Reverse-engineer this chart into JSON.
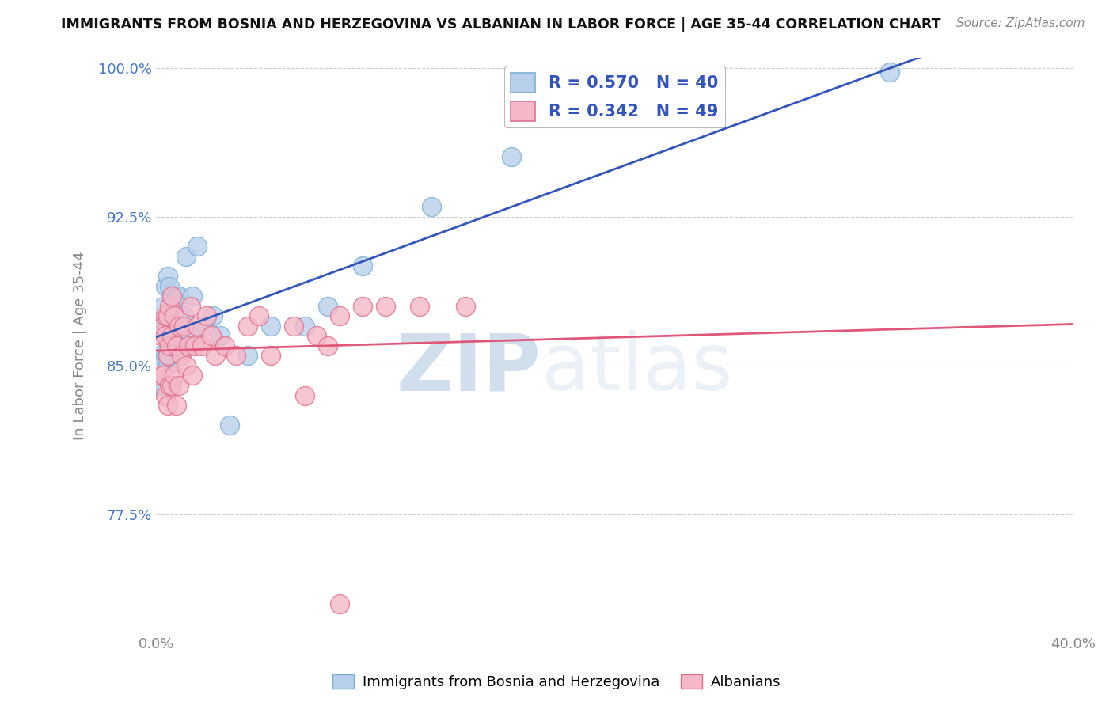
{
  "title": "IMMIGRANTS FROM BOSNIA AND HERZEGOVINA VS ALBANIAN IN LABOR FORCE | AGE 35-44 CORRELATION CHART",
  "source": "Source: ZipAtlas.com",
  "ylabel": "In Labor Force | Age 35-44",
  "xlim": [
    0.0,
    0.4
  ],
  "ylim": [
    0.715,
    1.005
  ],
  "yticks": [
    0.775,
    0.85,
    0.925,
    1.0
  ],
  "ytick_labels": [
    "77.5%",
    "85.0%",
    "92.5%",
    "100.0%"
  ],
  "xticks": [
    0.0,
    0.4
  ],
  "xtick_labels": [
    "0.0%",
    "40.0%"
  ],
  "blue_color": "#b8d0ea",
  "blue_edge_color": "#7bafd4",
  "pink_color": "#f4b8c8",
  "pink_edge_color": "#e07090",
  "blue_line_color": "#3355bb",
  "pink_line_color": "#e05878",
  "legend_r_blue": "R = 0.570",
  "legend_n_blue": "N = 40",
  "legend_r_pink": "R = 0.342",
  "legend_n_pink": "N = 49",
  "watermark_zip": "ZIP",
  "watermark_atlas": "atlas",
  "label_blue": "Immigrants from Bosnia and Herzegovina",
  "label_pink": "Albanians",
  "title_color": "#111111",
  "axis_color": "#888888",
  "tick_color": "#4477cc",
  "grid_color": "#cccccc",
  "blue_scatter_x": [
    0.001,
    0.002,
    0.003,
    0.003,
    0.003,
    0.004,
    0.004,
    0.004,
    0.005,
    0.005,
    0.005,
    0.005,
    0.006,
    0.006,
    0.006,
    0.007,
    0.007,
    0.008,
    0.009,
    0.009,
    0.01,
    0.01,
    0.011,
    0.012,
    0.013,
    0.015,
    0.016,
    0.018,
    0.022,
    0.025,
    0.028,
    0.032,
    0.04,
    0.05,
    0.065,
    0.075,
    0.09,
    0.12,
    0.155,
    0.32
  ],
  "blue_scatter_y": [
    0.84,
    0.855,
    0.84,
    0.87,
    0.88,
    0.855,
    0.87,
    0.89,
    0.85,
    0.855,
    0.87,
    0.895,
    0.855,
    0.87,
    0.89,
    0.865,
    0.88,
    0.865,
    0.87,
    0.885,
    0.86,
    0.885,
    0.87,
    0.875,
    0.905,
    0.865,
    0.885,
    0.91,
    0.87,
    0.875,
    0.865,
    0.82,
    0.855,
    0.87,
    0.87,
    0.88,
    0.9,
    0.93,
    0.955,
    0.998
  ],
  "pink_scatter_x": [
    0.001,
    0.002,
    0.003,
    0.003,
    0.004,
    0.004,
    0.004,
    0.005,
    0.005,
    0.005,
    0.006,
    0.006,
    0.006,
    0.007,
    0.007,
    0.007,
    0.008,
    0.008,
    0.009,
    0.009,
    0.01,
    0.01,
    0.011,
    0.012,
    0.013,
    0.014,
    0.015,
    0.016,
    0.017,
    0.018,
    0.02,
    0.022,
    0.024,
    0.026,
    0.03,
    0.035,
    0.04,
    0.045,
    0.05,
    0.06,
    0.065,
    0.07,
    0.075,
    0.08,
    0.09,
    0.1,
    0.115,
    0.135,
    0.08
  ],
  "pink_scatter_y": [
    0.845,
    0.865,
    0.845,
    0.87,
    0.835,
    0.865,
    0.875,
    0.83,
    0.855,
    0.875,
    0.84,
    0.86,
    0.88,
    0.84,
    0.865,
    0.885,
    0.845,
    0.875,
    0.83,
    0.86,
    0.84,
    0.87,
    0.855,
    0.87,
    0.85,
    0.86,
    0.88,
    0.845,
    0.86,
    0.87,
    0.86,
    0.875,
    0.865,
    0.855,
    0.86,
    0.855,
    0.87,
    0.875,
    0.855,
    0.87,
    0.835,
    0.865,
    0.86,
    0.875,
    0.88,
    0.88,
    0.88,
    0.88,
    0.73
  ]
}
